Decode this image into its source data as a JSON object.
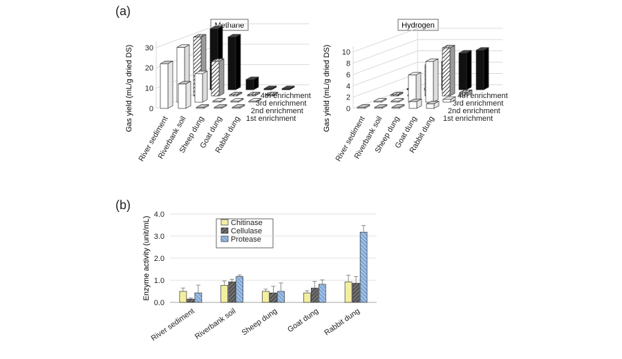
{
  "panel_a": {
    "label": "(a)"
  },
  "panel_b": {
    "label": "(b)"
  },
  "colors": {
    "chitinase": "#f3efa0",
    "cellulase": "#555555",
    "protease": "#7fa9d8",
    "axis": "#a6a6a6",
    "text": "#222222"
  },
  "chart_data": [
    {
      "type": "bar",
      "title": "Methane",
      "ylabel": "Gas  yield (mL/g dried DS)",
      "y_ticks": [
        "0",
        "10",
        "20",
        "30"
      ],
      "ylim": [
        0,
        33
      ],
      "categories": [
        "River sediment",
        "Riverbank soil",
        "Sheep dung",
        "Goat dung",
        "Rabbit dung"
      ],
      "series": [
        {
          "name": "1st  enrichment",
          "values": [
            22,
            12,
            0,
            0,
            0
          ]
        },
        {
          "name": "2nd enrichment",
          "values": [
            27,
            14,
            0,
            0,
            0
          ]
        },
        {
          "name": "3rd enrichment",
          "values": [
            29,
            17,
            0,
            0,
            0
          ]
        },
        {
          "name": "4th enrichment",
          "values": [
            30,
            26,
            5,
            0,
            0
          ]
        }
      ],
      "grid": true
    },
    {
      "type": "bar",
      "title": "Hydrogen",
      "ylabel": "Gas  yield (mL/g dried DS)",
      "y_ticks": [
        "0",
        "2",
        "4",
        "6",
        "8",
        "10"
      ],
      "ylim": [
        0,
        11
      ],
      "categories": [
        "River sediment",
        "Riverbank soil",
        "Sheep dung",
        "Goat dung",
        "Rabbit dung"
      ],
      "series": [
        {
          "name": "1st  enrichment",
          "values": [
            0,
            0,
            0,
            1.2,
            0.8
          ]
        },
        {
          "name": "2nd enrichment",
          "values": [
            0,
            0,
            4.8,
            7.2,
            0.5
          ]
        },
        {
          "name": "3rd enrichment",
          "values": [
            0,
            0,
            5.5,
            8.5,
            0.6
          ]
        },
        {
          "name": "4th enrichment",
          "values": [
            0,
            0,
            5.0,
            6.5,
            7.0
          ]
        }
      ],
      "grid": true
    },
    {
      "type": "bar",
      "title": "",
      "ylabel": "Enzyme  activity  (unit/mL)",
      "y_ticks": [
        "0.0",
        "1.0",
        "2.0",
        "3.0",
        "4.0"
      ],
      "ylim": [
        0,
        4.0
      ],
      "categories": [
        "River sediment",
        "Riverbank soil",
        "Sheep dung",
        "Goat dung",
        "Rabbit dung"
      ],
      "series": [
        {
          "name": "Chitinase",
          "values": [
            0.5,
            0.77,
            0.5,
            0.43,
            0.93
          ],
          "errors": [
            0.15,
            0.2,
            0.1,
            0.1,
            0.3
          ]
        },
        {
          "name": "Cellulase",
          "values": [
            0.15,
            0.93,
            0.43,
            0.65,
            0.87
          ],
          "errors": [
            0.05,
            0.12,
            0.3,
            0.3,
            0.3
          ]
        },
        {
          "name": "Protease",
          "values": [
            0.43,
            1.17,
            0.5,
            0.82,
            3.18
          ],
          "errors": [
            0.35,
            0.07,
            0.38,
            0.2,
            0.3
          ]
        }
      ],
      "legend": "top-left",
      "grid": true
    }
  ]
}
